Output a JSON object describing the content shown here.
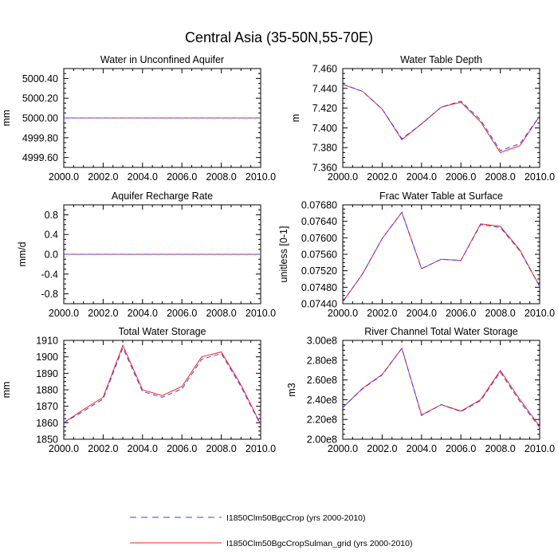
{
  "title": "Central Asia (35-50N,55-70E)",
  "colors": {
    "series1": "#3b3bff",
    "series2": "#ff2020"
  },
  "legend": [
    {
      "label": "I1850Clm50BgcCrop (yrs 2000-2010)",
      "color": "#3b3bff",
      "style": "dashed"
    },
    {
      "label": "I1850Clm50BgcCropSulman_grid (yrs 2000-2010)",
      "color": "#ff2020",
      "style": "solid"
    }
  ],
  "chart_data": [
    {
      "type": "line",
      "title": "Water in Unconfined Aquifer",
      "ylabel": "mm",
      "xlim": [
        2000,
        2010
      ],
      "ylim": [
        4999.5,
        5000.5
      ],
      "xticks": [
        2000,
        2002,
        2004,
        2006,
        2008,
        2010
      ],
      "xtick_labels": [
        "2000.0",
        "2002.0",
        "2004.0",
        "2006.0",
        "2008.0",
        "2010.0"
      ],
      "yticks": [
        4999.6,
        4999.8,
        5000.0,
        5000.2,
        5000.4
      ],
      "ytick_labels": [
        "4999.60",
        "4999.80",
        "5000.00",
        "5000.20",
        "5000.40"
      ],
      "x": [
        2000,
        2001,
        2002,
        2003,
        2004,
        2005,
        2006,
        2007,
        2008,
        2009,
        2010
      ],
      "series": [
        {
          "values": [
            5000,
            5000,
            5000,
            5000,
            5000,
            5000,
            5000,
            5000,
            5000,
            5000,
            5000
          ],
          "color": "#3b3bff",
          "style": "dashed"
        },
        {
          "values": [
            5000,
            5000,
            5000,
            5000,
            5000,
            5000,
            5000,
            5000,
            5000,
            5000,
            5000
          ],
          "color": "#ff2020",
          "style": "solid"
        }
      ]
    },
    {
      "type": "line",
      "title": "Water Table Depth",
      "ylabel": "m",
      "xlim": [
        2000,
        2010
      ],
      "ylim": [
        7.36,
        7.46
      ],
      "xticks": [
        2000,
        2002,
        2004,
        2006,
        2008,
        2010
      ],
      "xtick_labels": [
        "2000.0",
        "2002.0",
        "2004.0",
        "2006.0",
        "2008.0",
        "2010.0"
      ],
      "yticks": [
        7.36,
        7.38,
        7.4,
        7.42,
        7.44,
        7.46
      ],
      "ytick_labels": [
        "7.360",
        "7.380",
        "7.400",
        "7.420",
        "7.440",
        "7.460"
      ],
      "x": [
        2000,
        2001,
        2002,
        2003,
        2004,
        2005,
        2006,
        2007,
        2008,
        2009,
        2010
      ],
      "series": [
        {
          "values": [
            7.444,
            7.437,
            7.419,
            7.389,
            7.404,
            7.421,
            7.427,
            7.408,
            7.377,
            7.384,
            7.412
          ],
          "color": "#3b3bff",
          "style": "dashed"
        },
        {
          "values": [
            7.444,
            7.437,
            7.419,
            7.388,
            7.404,
            7.421,
            7.426,
            7.406,
            7.375,
            7.382,
            7.412
          ],
          "color": "#ff2020",
          "style": "solid"
        }
      ]
    },
    {
      "type": "line",
      "title": "Aquifer Recharge Rate",
      "ylabel": "mm/d",
      "xlim": [
        2000,
        2010
      ],
      "ylim": [
        -1.0,
        1.0
      ],
      "xticks": [
        2000,
        2002,
        2004,
        2006,
        2008,
        2010
      ],
      "xtick_labels": [
        "2000.0",
        "2002.0",
        "2004.0",
        "2006.0",
        "2008.0",
        "2010.0"
      ],
      "yticks": [
        -0.8,
        -0.4,
        0.0,
        0.4,
        0.8
      ],
      "ytick_labels": [
        "-0.8",
        "-0.4",
        "0.0",
        "0.4",
        "0.8"
      ],
      "x": [
        2000,
        2001,
        2002,
        2003,
        2004,
        2005,
        2006,
        2007,
        2008,
        2009,
        2010
      ],
      "series": [
        {
          "values": [
            0,
            0,
            0,
            0,
            0,
            0,
            0,
            0,
            0,
            0,
            0
          ],
          "color": "#3b3bff",
          "style": "dashed"
        },
        {
          "values": [
            0,
            0,
            0,
            0,
            0,
            0,
            0,
            0,
            0,
            0,
            0
          ],
          "color": "#ff2020",
          "style": "solid"
        }
      ]
    },
    {
      "type": "line",
      "title": "Frac Water Table at Surface",
      "ylabel": "unitless [0-1]",
      "xlim": [
        2000,
        2010
      ],
      "ylim": [
        0.0744,
        0.0768
      ],
      "xticks": [
        2000,
        2002,
        2004,
        2006,
        2008,
        2010
      ],
      "xtick_labels": [
        "2000.0",
        "2002.0",
        "2004.0",
        "2006.0",
        "2008.0",
        "2010.0"
      ],
      "yticks": [
        0.0744,
        0.0748,
        0.0752,
        0.0756,
        0.076,
        0.0764,
        0.0768
      ],
      "ytick_labels": [
        "0.07440",
        "0.07480",
        "0.07520",
        "0.07560",
        "0.07600",
        "0.07640",
        "0.07680"
      ],
      "x": [
        2000,
        2001,
        2002,
        2003,
        2004,
        2005,
        2006,
        2007,
        2008,
        2009,
        2010
      ],
      "series": [
        {
          "values": [
            0.07445,
            0.07512,
            0.07598,
            0.07662,
            0.07525,
            0.07548,
            0.07545,
            0.07632,
            0.07625,
            0.07568,
            0.07482
          ],
          "color": "#3b3bff",
          "style": "dashed"
        },
        {
          "values": [
            0.07445,
            0.07512,
            0.07598,
            0.07662,
            0.07525,
            0.07548,
            0.07545,
            0.07634,
            0.07628,
            0.0757,
            0.07482
          ],
          "color": "#ff2020",
          "style": "solid"
        }
      ]
    },
    {
      "type": "line",
      "title": "Total Water Storage",
      "ylabel": "mm",
      "xlim": [
        2000,
        2010
      ],
      "ylim": [
        1850,
        1910
      ],
      "xticks": [
        2000,
        2002,
        2004,
        2006,
        2008,
        2010
      ],
      "xtick_labels": [
        "2000.0",
        "2002.0",
        "2004.0",
        "2006.0",
        "2008.0",
        "2010.0"
      ],
      "yticks": [
        1850,
        1860,
        1870,
        1880,
        1890,
        1900,
        1910
      ],
      "ytick_labels": [
        "1850",
        "1860",
        "1870",
        "1880",
        "1890",
        "1900",
        "1910"
      ],
      "x": [
        2000,
        2001,
        2002,
        2003,
        2004,
        2005,
        2006,
        2007,
        2008,
        2009,
        2010
      ],
      "series": [
        {
          "values": [
            1860,
            1867,
            1874.5,
            1905.5,
            1879,
            1875.5,
            1880.5,
            1898.5,
            1902,
            1882,
            1858.5
          ],
          "color": "#3b3bff",
          "style": "dashed"
        },
        {
          "values": [
            1860,
            1868,
            1875.5,
            1907,
            1880,
            1876.5,
            1882,
            1900,
            1903,
            1883,
            1859
          ],
          "color": "#ff2020",
          "style": "solid"
        }
      ]
    },
    {
      "type": "line",
      "title": "River Channel Total Water Storage",
      "ylabel": "m3",
      "xlim": [
        2000,
        2010
      ],
      "ylim": [
        200000000,
        300000000
      ],
      "xticks": [
        2000,
        2002,
        2004,
        2006,
        2008,
        2010
      ],
      "xtick_labels": [
        "2000.0",
        "2002.0",
        "2004.0",
        "2006.0",
        "2008.0",
        "2010.0"
      ],
      "yticks": [
        200000000,
        220000000,
        240000000,
        260000000,
        280000000,
        300000000
      ],
      "ytick_labels": [
        "2.00e8",
        "2.20e8",
        "2.40e8",
        "2.60e8",
        "2.80e8",
        "3.00e8"
      ],
      "x": [
        2000,
        2001,
        2002,
        2003,
        2004,
        2005,
        2006,
        2007,
        2008,
        2009,
        2010
      ],
      "series": [
        {
          "values": [
            232000000,
            251000000,
            265000000,
            292000000,
            224000000,
            235000000,
            228000000,
            239000000,
            268000000,
            238000000,
            212000000
          ],
          "color": "#3b3bff",
          "style": "dashed"
        },
        {
          "values": [
            232000000,
            251500000,
            265500000,
            292000000,
            224500000,
            235000000,
            228500000,
            240000000,
            269500000,
            240000000,
            213000000
          ],
          "color": "#ff2020",
          "style": "solid"
        }
      ]
    }
  ]
}
